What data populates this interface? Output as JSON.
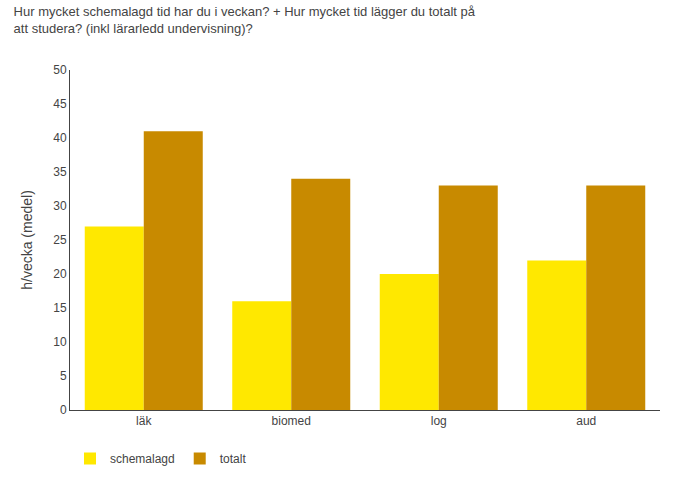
{
  "chart_data": {
    "type": "bar",
    "title": "Hur mycket schemalagd tid har du i veckan? + Hur mycket tid lägger du totalt på att studera? (inkl lärarledd undervisning)?",
    "categories": [
      "läk",
      "biomed",
      "log",
      "aud"
    ],
    "series": [
      {
        "name": "schemalagd",
        "color": "#FFE800",
        "values": [
          27,
          16,
          20,
          22
        ]
      },
      {
        "name": "totalt",
        "color": "#C88A00",
        "values": [
          41,
          34,
          33,
          33
        ]
      }
    ],
    "ylabel": "h/vecka (medel)",
    "ylim": [
      0,
      50
    ],
    "yticks": [
      0,
      5,
      10,
      15,
      20,
      25,
      30,
      35,
      40,
      45,
      50
    ],
    "grid": false,
    "legend": "lower left"
  }
}
